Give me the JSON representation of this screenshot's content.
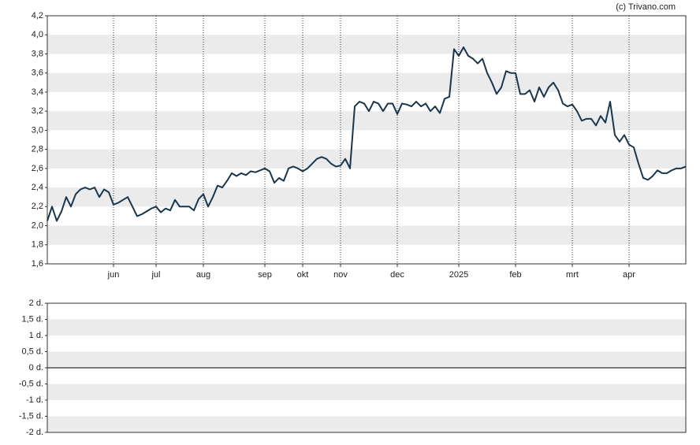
{
  "chart_data": [
    {
      "type": "line",
      "source": "(c) Trivano.com",
      "categories": [
        null,
        null,
        null,
        null,
        null,
        null,
        null,
        null,
        null,
        null,
        null,
        null,
        null,
        null,
        "jun",
        null,
        null,
        null,
        null,
        null,
        null,
        null,
        null,
        "jul",
        null,
        null,
        null,
        null,
        null,
        null,
        null,
        null,
        null,
        "aug",
        null,
        null,
        null,
        null,
        null,
        null,
        null,
        null,
        null,
        null,
        null,
        null,
        "sep",
        null,
        null,
        null,
        null,
        null,
        null,
        null,
        "okt",
        null,
        null,
        null,
        null,
        null,
        null,
        null,
        "nov",
        null,
        null,
        null,
        null,
        null,
        null,
        null,
        null,
        null,
        null,
        null,
        "dec",
        null,
        null,
        null,
        null,
        null,
        null,
        null,
        null,
        null,
        null,
        null,
        null,
        "2025",
        null,
        null,
        null,
        null,
        null,
        null,
        null,
        null,
        null,
        null,
        null,
        "feb",
        null,
        null,
        null,
        null,
        null,
        null,
        null,
        null,
        null,
        null,
        null,
        "mrt",
        null,
        null,
        null,
        null,
        null,
        null,
        null,
        null,
        null,
        null,
        null,
        "apr",
        null,
        null,
        null,
        null,
        null,
        null,
        null,
        null,
        null,
        null,
        null,
        null
      ],
      "series": [
        {
          "color": "#17374f",
          "values": [
            2.05,
            2.2,
            2.05,
            2.15,
            2.3,
            2.2,
            2.33,
            2.38,
            2.4,
            2.38,
            2.4,
            2.3,
            2.38,
            2.35,
            2.22,
            2.24,
            2.27,
            2.3,
            2.2,
            2.1,
            2.12,
            2.15,
            2.18,
            2.2,
            2.14,
            2.18,
            2.16,
            2.27,
            2.2,
            2.2,
            2.2,
            2.16,
            2.28,
            2.33,
            2.2,
            2.3,
            2.42,
            2.4,
            2.47,
            2.55,
            2.52,
            2.55,
            2.53,
            2.57,
            2.56,
            2.58,
            2.6,
            2.57,
            2.45,
            2.5,
            2.47,
            2.6,
            2.62,
            2.6,
            2.57,
            2.6,
            2.65,
            2.7,
            2.72,
            2.7,
            2.65,
            2.62,
            2.63,
            2.7,
            2.6,
            3.25,
            3.3,
            3.28,
            3.2,
            3.3,
            3.28,
            3.2,
            3.28,
            3.28,
            3.17,
            3.28,
            3.27,
            3.25,
            3.3,
            3.25,
            3.28,
            3.2,
            3.25,
            3.18,
            3.33,
            3.35,
            3.85,
            3.78,
            3.87,
            3.78,
            3.75,
            3.7,
            3.75,
            3.6,
            3.5,
            3.38,
            3.45,
            3.62,
            3.6,
            3.6,
            3.38,
            3.38,
            3.42,
            3.3,
            3.45,
            3.35,
            3.45,
            3.5,
            3.42,
            3.28,
            3.25,
            3.27,
            3.2,
            3.1,
            3.12,
            3.12,
            3.05,
            3.15,
            3.08,
            3.3,
            2.95,
            2.88,
            2.95,
            2.85,
            2.82,
            2.65,
            2.5,
            2.48,
            2.52,
            2.58,
            2.55,
            2.55,
            2.58,
            2.6,
            2.6,
            2.62
          ]
        }
      ],
      "ylim": [
        1.6,
        4.2
      ],
      "yticks": [
        {
          "value": 1.6,
          "label": "1,6"
        },
        {
          "value": 1.8,
          "label": "1,8"
        },
        {
          "value": 2.0,
          "label": "2,0"
        },
        {
          "value": 2.2,
          "label": "2,2"
        },
        {
          "value": 2.4,
          "label": "2,4"
        },
        {
          "value": 2.6,
          "label": "2,6"
        },
        {
          "value": 2.8,
          "label": "2,8"
        },
        {
          "value": 3.0,
          "label": "3,0"
        },
        {
          "value": 3.2,
          "label": "3,2"
        },
        {
          "value": 3.4,
          "label": "3,4"
        },
        {
          "value": 3.6,
          "label": "3,6"
        },
        {
          "value": 3.8,
          "label": "3,8"
        },
        {
          "value": 4.0,
          "label": "4,0"
        },
        {
          "value": 4.2,
          "label": "4,2"
        }
      ],
      "bands": true
    },
    {
      "type": "line",
      "series": [],
      "ylim": [
        -2,
        2
      ],
      "yticks": [
        {
          "value": -2,
          "label": "-2 d."
        },
        {
          "value": -1.5,
          "label": "-1,5 d."
        },
        {
          "value": -1,
          "label": "-1 d."
        },
        {
          "value": -0.5,
          "label": "-0,5 d."
        },
        {
          "value": 0,
          "label": "0 d."
        },
        {
          "value": 0.5,
          "label": "0,5 d."
        },
        {
          "value": 1,
          "label": "1 d."
        },
        {
          "value": 1.5,
          "label": "1,5 d."
        },
        {
          "value": 2,
          "label": "2 d."
        }
      ],
      "bands": true
    }
  ]
}
